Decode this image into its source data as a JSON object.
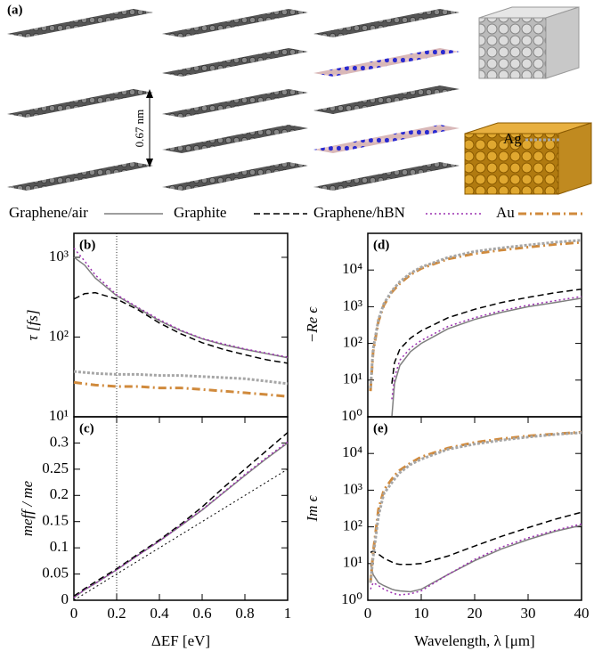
{
  "panel_a": {
    "label": "(a)",
    "spacing": "0.67 nm"
  },
  "chart_data": [
    {
      "type": "line",
      "title": "(b)",
      "ylabel": "τ [fs]",
      "log_y": true,
      "x": [
        0,
        0.05,
        0.1,
        0.2,
        0.3,
        0.4,
        0.5,
        0.6,
        0.7,
        0.8,
        0.9,
        1.0
      ],
      "xlim": [
        0,
        1
      ],
      "ylim": [
        10,
        2000
      ],
      "yticks": [
        {
          "value": 10,
          "label": "10¹"
        },
        {
          "value": 100,
          "label": "10²"
        },
        {
          "value": 1000,
          "label": "10³"
        }
      ],
      "vline": 0.2,
      "series": [
        {
          "name": "Graphene/air",
          "color": "#7f7f7f",
          "dash": "solid",
          "width": 1.5,
          "values": [
            1000,
            800,
            550,
            330,
            230,
            160,
            120,
            95,
            80,
            70,
            62,
            55
          ]
        },
        {
          "name": "Graphite",
          "color": "#000000",
          "dash": "dashed",
          "width": 1.5,
          "values": [
            300,
            350,
            360,
            300,
            220,
            150,
            110,
            85,
            70,
            60,
            52,
            47
          ]
        },
        {
          "name": "Graphene/hBN",
          "color": "#9b30b0",
          "dash": "dotted",
          "width": 1.5,
          "values": [
            1300,
            900,
            600,
            340,
            235,
            165,
            122,
            96,
            82,
            71,
            63,
            56
          ]
        },
        {
          "name": "Au",
          "color": "#d08a3c",
          "dash": "dashdot",
          "width": 3,
          "values": [
            27,
            26,
            25,
            24,
            24,
            23,
            23,
            22,
            21,
            20,
            19,
            18
          ]
        },
        {
          "name": "Ag",
          "color": "#a6a6a6",
          "dash": "dotted",
          "width": 3,
          "values": [
            37,
            36,
            35,
            34,
            34,
            33,
            33,
            32,
            31,
            30,
            28,
            26
          ]
        }
      ]
    },
    {
      "type": "line",
      "title": "(c)",
      "ylabel": "meff / me",
      "xlabel": "ΔEF [eV]",
      "log_y": false,
      "x": [
        0,
        0.05,
        0.1,
        0.2,
        0.3,
        0.4,
        0.5,
        0.6,
        0.7,
        0.8,
        0.9,
        1.0
      ],
      "xlim": [
        0,
        1
      ],
      "xticks": [
        0,
        0.2,
        0.4,
        0.6,
        0.8,
        1
      ],
      "ylim": [
        0,
        0.35
      ],
      "yticks": [
        0,
        0.05,
        0.1,
        0.15,
        0.2,
        0.25,
        0.3
      ],
      "vline": 0.2,
      "series": [
        {
          "color": "#7f7f7f",
          "dash": "solid",
          "width": 1.5,
          "values": [
            0.005,
            0.02,
            0.032,
            0.058,
            0.086,
            0.113,
            0.142,
            0.172,
            0.205,
            0.238,
            0.27,
            0.3
          ]
        },
        {
          "color": "#000000",
          "dash": "dashed",
          "width": 1.5,
          "values": [
            0.008,
            0.022,
            0.035,
            0.06,
            0.088,
            0.115,
            0.145,
            0.178,
            0.215,
            0.25,
            0.285,
            0.32
          ]
        },
        {
          "color": "#9b30b0",
          "dash": "dotted",
          "width": 1.5,
          "values": [
            0.005,
            0.02,
            0.032,
            0.058,
            0.086,
            0.113,
            0.143,
            0.173,
            0.206,
            0.24,
            0.272,
            0.302
          ]
        },
        {
          "color": "#000000",
          "dash": "dotted",
          "width": 1,
          "values": [
            0,
            0.0125,
            0.025,
            0.05,
            0.075,
            0.1,
            0.125,
            0.15,
            0.175,
            0.2,
            0.225,
            0.25
          ]
        }
      ]
    },
    {
      "type": "line",
      "title": "(d)",
      "ylabel": "−Re ϵ",
      "log_y": true,
      "x": [
        0.5,
        1,
        2,
        3,
        4.5,
        5,
        6,
        8,
        10,
        15,
        20,
        25,
        30,
        35,
        40
      ],
      "xlim": [
        0,
        40
      ],
      "ylim": [
        1,
        100000
      ],
      "yticks": [
        {
          "value": 1,
          "label": "10⁰"
        },
        {
          "value": 10,
          "label": "10¹"
        },
        {
          "value": 100,
          "label": "10²"
        },
        {
          "value": 1000,
          "label": "10³"
        },
        {
          "value": 10000,
          "label": "10⁴"
        }
      ],
      "series": [
        {
          "color": "#7f7f7f",
          "dash": "solid",
          "width": 1.5,
          "values": [
            null,
            null,
            null,
            null,
            1,
            8,
            25,
            60,
            100,
            250,
            450,
            700,
            1000,
            1300,
            1700
          ]
        },
        {
          "color": "#000000",
          "dash": "dashed",
          "width": 1.5,
          "values": [
            null,
            null,
            null,
            null,
            8,
            30,
            70,
            140,
            220,
            500,
            850,
            1300,
            1800,
            2400,
            3000
          ]
        },
        {
          "color": "#9b30b0",
          "dash": "dotted",
          "width": 1.5,
          "values": [
            null,
            null,
            null,
            null,
            3,
            12,
            35,
            75,
            120,
            290,
            500,
            780,
            1100,
            1450,
            1900
          ]
        },
        {
          "color": "#d08a3c",
          "dash": "dashdot",
          "width": 3,
          "values": [
            5,
            60,
            400,
            1100,
            2500,
            3000,
            4300,
            7500,
            11000,
            20000,
            28000,
            35000,
            42000,
            50000,
            57000
          ]
        },
        {
          "color": "#a6a6a6",
          "dash": "dotted",
          "width": 3,
          "values": [
            6,
            70,
            450,
            1200,
            2700,
            3300,
            4800,
            8200,
            12000,
            22000,
            32000,
            40000,
            48000,
            57000,
            65000
          ]
        }
      ]
    },
    {
      "type": "line",
      "title": "(e)",
      "ylabel": "Im ϵ",
      "xlabel": "Wavelength, λ [μm]",
      "log_y": true,
      "x": [
        0.5,
        1,
        2,
        3,
        4.5,
        5,
        6,
        8,
        10,
        15,
        20,
        25,
        30,
        35,
        40
      ],
      "xlim": [
        0,
        40
      ],
      "xticks": [
        0,
        10,
        20,
        30,
        40
      ],
      "ylim": [
        1,
        100000
      ],
      "yticks": [
        {
          "value": 1,
          "label": "10⁰"
        },
        {
          "value": 10,
          "label": "10¹"
        },
        {
          "value": 100,
          "label": "10²"
        },
        {
          "value": 1000,
          "label": "10³"
        },
        {
          "value": 10000,
          "label": "10⁴"
        }
      ],
      "series": [
        {
          "color": "#7f7f7f",
          "dash": "solid",
          "width": 1.5,
          "values": [
            10,
            5,
            3,
            2.5,
            2,
            1.9,
            1.8,
            1.7,
            2,
            5,
            12,
            25,
            45,
            75,
            110
          ]
        },
        {
          "color": "#000000",
          "dash": "dashed",
          "width": 1.5,
          "values": [
            20,
            22,
            18,
            14,
            11,
            10,
            9.5,
            9.5,
            10,
            16,
            30,
            55,
            95,
            160,
            250
          ]
        },
        {
          "color": "#9b30b0",
          "dash": "dotted",
          "width": 1.5,
          "values": [
            2,
            3,
            2.5,
            2,
            1.6,
            1.5,
            1.4,
            1.5,
            1.8,
            5,
            13,
            28,
            50,
            80,
            120
          ]
        },
        {
          "color": "#d08a3c",
          "dash": "dashdot",
          "width": 3,
          "values": [
            3,
            20,
            300,
            1000,
            2000,
            2500,
            3500,
            5500,
            8000,
            14000,
            20000,
            25000,
            30000,
            34000,
            38000
          ]
        },
        {
          "color": "#a6a6a6",
          "dash": "dotted",
          "width": 3,
          "values": [
            3,
            15,
            200,
            800,
            1600,
            2000,
            3000,
            5000,
            7000,
            13000,
            18000,
            23000,
            28000,
            33000,
            37000
          ]
        }
      ]
    }
  ]
}
